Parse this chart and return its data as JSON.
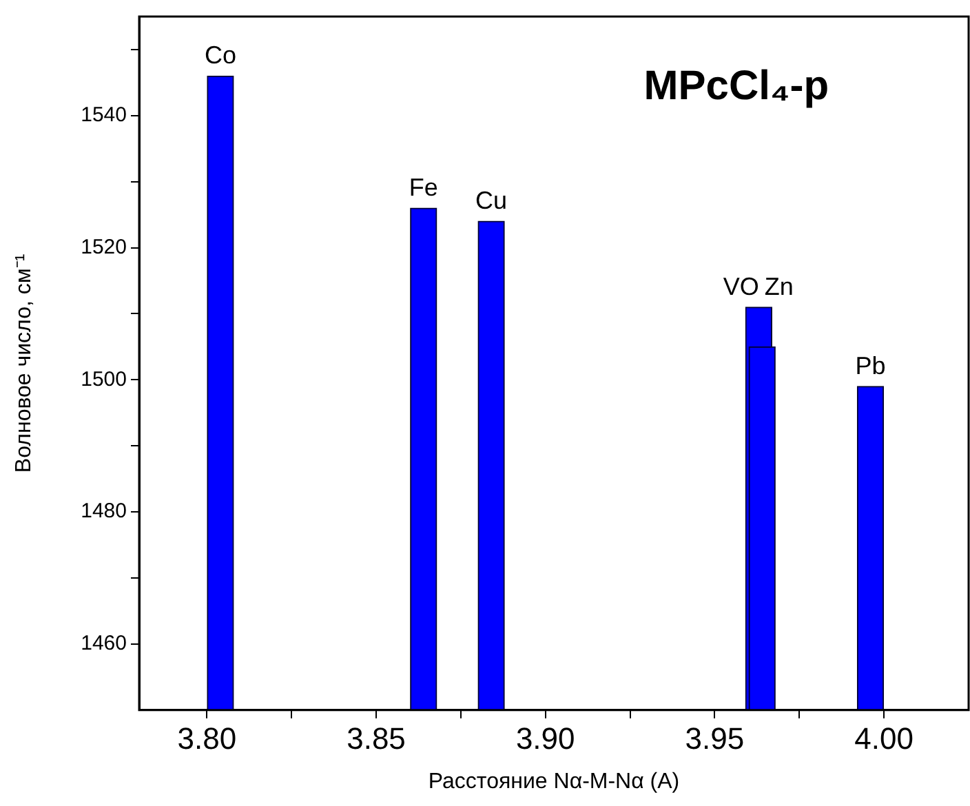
{
  "chart_data": {
    "type": "bar",
    "title": "MPcCl₄-p",
    "xlabel": "Расстояние Nα-M-Nα (A)",
    "ylabel": "Волновое число, см⁻¹",
    "x": [
      3.804,
      3.864,
      3.884,
      3.963,
      3.964,
      3.996
    ],
    "values": [
      1546,
      1526,
      1524,
      1511,
      1505,
      1499
    ],
    "color": "#0000ff",
    "xlim": [
      3.78,
      4.025
    ],
    "xticks": [
      {
        "value": 3.8,
        "label": "3.80"
      },
      {
        "value": 3.825,
        "label": null
      },
      {
        "value": 3.85,
        "label": "3.85"
      },
      {
        "value": 3.875,
        "label": null
      },
      {
        "value": 3.9,
        "label": "3.90"
      },
      {
        "value": 3.925,
        "label": null
      },
      {
        "value": 3.95,
        "label": "3.95"
      },
      {
        "value": 3.975,
        "label": null
      },
      {
        "value": 4.0,
        "label": "4.00"
      }
    ],
    "ylim": [
      1450,
      1555
    ],
    "yticks": [
      1460,
      {
        "value": 1470,
        "label": null
      },
      1480,
      {
        "value": 1490,
        "label": null
      },
      1500,
      {
        "value": 1510,
        "label": null
      },
      1520,
      {
        "value": 1530,
        "label": null
      },
      1540,
      {
        "value": 1550,
        "label": null
      }
    ],
    "annotations": [
      {
        "text": "Co",
        "x": 3.804,
        "y": 1546
      },
      {
        "text": "Fe",
        "x": 3.864,
        "y": 1526
      },
      {
        "text": "Cu",
        "x": 3.884,
        "y": 1524
      },
      {
        "text": "VO",
        "x": 3.963,
        "y": 1511
      },
      {
        "text": "Zn",
        "x": 3.964,
        "y": 1505
      },
      {
        "text": "Pb",
        "x": 3.996,
        "y": 1499
      }
    ],
    "grid": false,
    "legend": false
  }
}
